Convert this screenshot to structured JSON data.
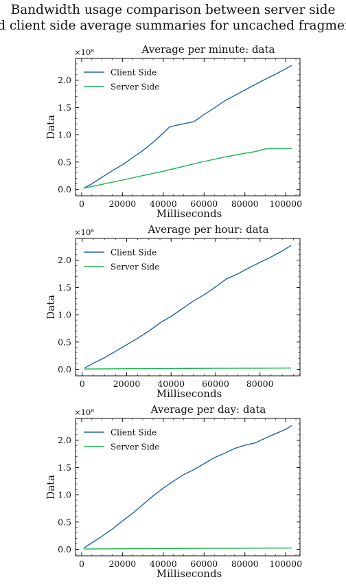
{
  "figure": {
    "suptitle_lines": [
      "Bandwidth usage comparison between server side",
      "and client side average summaries for uncached fragments"
    ],
    "colors": {
      "client": "#1f63a8",
      "server": "#17b34a"
    }
  },
  "chart_data": [
    {
      "type": "line",
      "title": "Average per minute: data",
      "xlabel": "Milliseconds",
      "ylabel": "Data",
      "offset_label": "×10⁸",
      "xlim": [
        -3000,
        107000
      ],
      "ylim": [
        -0.12,
        2.4
      ],
      "xticks": [
        20000,
        40000,
        60000,
        80000,
        100000
      ],
      "yticks": [
        0.0,
        0.5,
        1.0,
        1.5,
        2.0
      ],
      "ytick_labels": [
        "0.0",
        "0.5",
        "1.0",
        "1.5",
        "2.0"
      ],
      "legend": "upper-left",
      "series": [
        {
          "name": "Client Side",
          "x": [
            1000,
            5000,
            10000,
            15000,
            20000,
            25000,
            30000,
            35000,
            40000,
            43000,
            46000,
            50000,
            55000,
            60000,
            65000,
            70000,
            75000,
            80000,
            85000,
            90000,
            95000,
            100000,
            103000
          ],
          "y": [
            0.02,
            0.1,
            0.22,
            0.34,
            0.45,
            0.58,
            0.71,
            0.86,
            1.03,
            1.14,
            1.17,
            1.2,
            1.24,
            1.37,
            1.49,
            1.62,
            1.72,
            1.82,
            1.92,
            2.02,
            2.11,
            2.21,
            2.27
          ]
        },
        {
          "name": "Server Side",
          "x": [
            1000,
            10000,
            20000,
            30000,
            40000,
            50000,
            60000,
            70000,
            80000,
            85000,
            90000,
            95000,
            103000
          ],
          "y": [
            0.02,
            0.09,
            0.17,
            0.25,
            0.33,
            0.42,
            0.51,
            0.59,
            0.66,
            0.69,
            0.74,
            0.75,
            0.75
          ]
        }
      ]
    },
    {
      "type": "line",
      "title": "Average per hour: data",
      "xlabel": "Milliseconds",
      "ylabel": "Data",
      "offset_label": "×10⁸",
      "xlim": [
        -3000,
        98000
      ],
      "ylim": [
        -0.12,
        2.4
      ],
      "xticks": [
        20000,
        40000,
        60000,
        80000
      ],
      "yticks": [
        0.0,
        0.5,
        1.0,
        1.5,
        2.0
      ],
      "ytick_labels": [
        "0.0",
        "0.5",
        "1.0",
        "1.5",
        "2.0"
      ],
      "legend": "upper-left",
      "series": [
        {
          "name": "Client Side",
          "x": [
            1000,
            5000,
            10000,
            15000,
            20000,
            25000,
            30000,
            35000,
            40000,
            45000,
            50000,
            55000,
            60000,
            65000,
            70000,
            75000,
            80000,
            85000,
            90000,
            94000
          ],
          "y": [
            0.02,
            0.11,
            0.21,
            0.33,
            0.45,
            0.57,
            0.7,
            0.85,
            0.97,
            1.11,
            1.25,
            1.37,
            1.51,
            1.66,
            1.75,
            1.86,
            1.96,
            2.06,
            2.17,
            2.27
          ]
        },
        {
          "name": "Server Side",
          "x": [
            1000,
            20000,
            40000,
            60000,
            80000,
            94000
          ],
          "y": [
            0.005,
            0.01,
            0.013,
            0.017,
            0.02,
            0.022
          ]
        }
      ]
    },
    {
      "type": "line",
      "title": "Average per day: data",
      "xlabel": "Milliseconds",
      "ylabel": "Data",
      "offset_label": "×10⁸",
      "xlim": [
        -3000,
        107000
      ],
      "ylim": [
        -0.12,
        2.4
      ],
      "xticks": [
        20000,
        40000,
        60000,
        80000,
        100000
      ],
      "yticks": [
        0.0,
        0.5,
        1.0,
        1.5,
        2.0
      ],
      "ytick_labels": [
        "0.0",
        "0.5",
        "1.0",
        "1.5",
        "2.0"
      ],
      "legend": "upper-left",
      "series": [
        {
          "name": "Client Side",
          "x": [
            1000,
            5000,
            10000,
            15000,
            20000,
            25000,
            30000,
            35000,
            40000,
            45000,
            50000,
            55000,
            60000,
            65000,
            70000,
            75000,
            80000,
            85000,
            90000,
            95000,
            100000,
            103000
          ],
          "y": [
            0.02,
            0.12,
            0.24,
            0.37,
            0.52,
            0.66,
            0.82,
            0.98,
            1.12,
            1.25,
            1.37,
            1.46,
            1.57,
            1.68,
            1.76,
            1.85,
            1.91,
            1.95,
            2.04,
            2.12,
            2.2,
            2.27
          ]
        },
        {
          "name": "Server Side",
          "x": [
            1000,
            20000,
            40000,
            60000,
            80000,
            103000
          ],
          "y": [
            0.005,
            0.01,
            0.013,
            0.017,
            0.02,
            0.022
          ]
        }
      ]
    }
  ]
}
